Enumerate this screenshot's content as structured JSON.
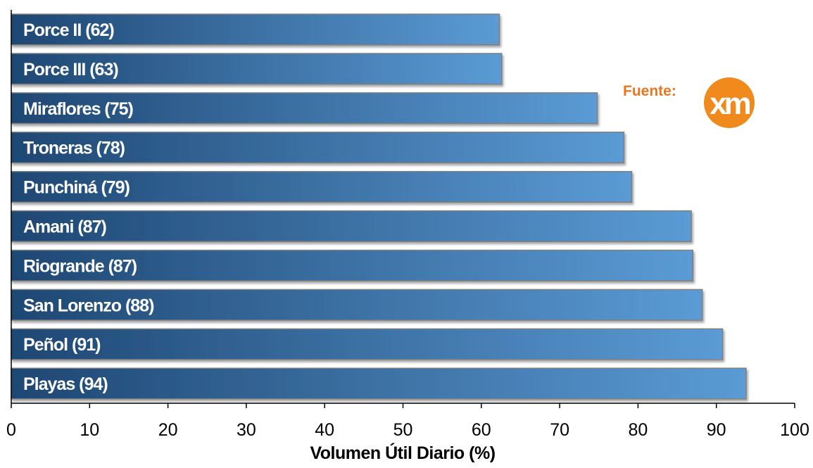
{
  "chart_data": {
    "type": "bar",
    "orientation": "horizontal",
    "categories": [
      "Porce II (62)",
      "Porce III (63)",
      "Miraflores (75)",
      "Troneras (78)",
      "Punchiná (79)",
      "Amani (87)",
      "Riogrande (87)",
      "San Lorenzo (88)",
      "Peñol (91)",
      "Playas (94)"
    ],
    "values": [
      62.3,
      62.6,
      74.8,
      78.2,
      79.2,
      86.8,
      87.0,
      88.2,
      90.8,
      93.8
    ],
    "xlabel": "Volumen Útil Diario (%)",
    "xlim": [
      0,
      100
    ],
    "xticks": [
      "0",
      "10",
      "20",
      "30",
      "40",
      "50",
      "60",
      "70",
      "80",
      "90",
      "100"
    ],
    "grid": false,
    "legend": "none"
  },
  "source": {
    "label": "Fuente:",
    "logo_text": "xm",
    "label_color": "#E87722",
    "logo_color": "#F08A1C"
  },
  "colors": {
    "bar_start": "#1E4773",
    "bar_end": "#5B9BD5",
    "bar_border": "#7F7F7F"
  }
}
